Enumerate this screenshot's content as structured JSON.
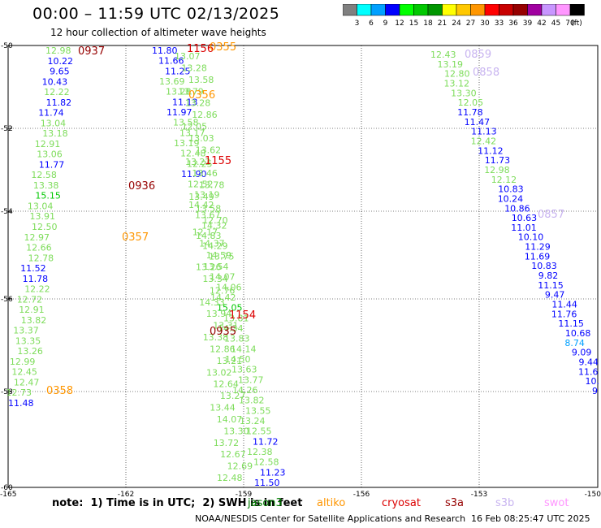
{
  "header": {
    "title": "00:00 – 11:59 UTC 02/13/2025",
    "subtitle": "12 hour collection of altimeter wave heights"
  },
  "colorbar": {
    "unit": "(ft)",
    "stops": [
      {
        "label": "3",
        "color": "#808080"
      },
      {
        "label": "6",
        "color": "#00ffff"
      },
      {
        "label": "9",
        "color": "#00a0ff"
      },
      {
        "label": "12",
        "color": "#0000ff"
      },
      {
        "label": "15",
        "color": "#00ff00"
      },
      {
        "label": "18",
        "color": "#00c800"
      },
      {
        "label": "21",
        "color": "#009600"
      },
      {
        "label": "24",
        "color": "#ffff00"
      },
      {
        "label": "27",
        "color": "#ffc800"
      },
      {
        "label": "30",
        "color": "#ff9600"
      },
      {
        "label": "33",
        "color": "#ff0000"
      },
      {
        "label": "36",
        "color": "#c80000"
      },
      {
        "label": "39",
        "color": "#960000"
      },
      {
        "label": "42",
        "color": "#a000a0"
      },
      {
        "label": "45",
        "color": "#c896ff"
      },
      {
        "label": "70",
        "color": "#ff96ff"
      },
      {
        "label": "",
        "color": "#000000"
      }
    ]
  },
  "map": {
    "lon_ticks": [
      "-165",
      "-162",
      "-159",
      "-156",
      "-153",
      "-150"
    ],
    "lat_ticks": [
      "-50",
      "-52",
      "-54",
      "-56",
      "-58",
      "-60"
    ],
    "colors": {
      "gray": "#808080",
      "blue": "#0000ff",
      "green": "#00c800",
      "lightgreen": "#7ddc5a",
      "darkred": "#960000",
      "red": "#dc0000",
      "orange": "#ff9600",
      "lavender": "#c8b4f0",
      "cyan": "#00a0ff"
    },
    "time_labels": [
      {
        "text": "0937",
        "color": "darkred"
      },
      {
        "text": "1156",
        "color": "red"
      },
      {
        "text": "0355",
        "color": "orange"
      },
      {
        "text": "0356",
        "color": "orange"
      },
      {
        "text": "1155",
        "color": "red"
      },
      {
        "text": "0936",
        "color": "darkred"
      },
      {
        "text": "0357",
        "color": "orange"
      },
      {
        "text": "1154",
        "color": "red"
      },
      {
        "text": "0935",
        "color": "darkred"
      },
      {
        "text": "0358",
        "color": "orange"
      },
      {
        "text": "0859",
        "color": "lavender"
      },
      {
        "text": "0858",
        "color": "lavender"
      },
      {
        "text": "0857",
        "color": "lavender"
      }
    ],
    "tracks": [
      {
        "id": "track-a",
        "labels": [
          {
            "text": "12.98",
            "color": "lightgreen"
          },
          {
            "text": "10.22",
            "color": "blue"
          },
          {
            "text": "9.65",
            "color": "blue"
          },
          {
            "text": "10.43",
            "color": "blue"
          },
          {
            "text": "12.22",
            "color": "lightgreen"
          },
          {
            "text": "11.82",
            "color": "blue"
          },
          {
            "text": "11.74",
            "color": "blue"
          },
          {
            "text": "13.04",
            "color": "lightgreen"
          },
          {
            "text": "13.18",
            "color": "lightgreen"
          },
          {
            "text": "12.91",
            "color": "lightgreen"
          },
          {
            "text": "13.06",
            "color": "lightgreen"
          },
          {
            "text": "11.77",
            "color": "blue"
          },
          {
            "text": "12.58",
            "color": "lightgreen"
          },
          {
            "text": "13.38",
            "color": "lightgreen"
          },
          {
            "text": "15.15",
            "color": "green"
          },
          {
            "text": "13.04",
            "color": "lightgreen"
          },
          {
            "text": "13.91",
            "color": "lightgreen"
          },
          {
            "text": "12.50",
            "color": "lightgreen"
          },
          {
            "text": "12.97",
            "color": "lightgreen"
          },
          {
            "text": "12.66",
            "color": "lightgreen"
          },
          {
            "text": "12.78",
            "color": "lightgreen"
          },
          {
            "text": "11.52",
            "color": "blue"
          },
          {
            "text": "11.78",
            "color": "blue"
          },
          {
            "text": "12.22",
            "color": "lightgreen"
          },
          {
            "text": "12.72",
            "color": "lightgreen"
          },
          {
            "text": "12.91",
            "color": "lightgreen"
          },
          {
            "text": "13.82",
            "color": "lightgreen"
          },
          {
            "text": "13.37",
            "color": "lightgreen"
          },
          {
            "text": "13.35",
            "color": "lightgreen"
          },
          {
            "text": "13.26",
            "color": "lightgreen"
          },
          {
            "text": "12.99",
            "color": "lightgreen"
          },
          {
            "text": "12.45",
            "color": "lightgreen"
          },
          {
            "text": "12.47",
            "color": "lightgreen"
          },
          {
            "text": "12.73",
            "color": "lightgreen"
          },
          {
            "text": "11.48",
            "color": "blue"
          }
        ]
      },
      {
        "id": "track-b",
        "labels": [
          {
            "text": "11.80",
            "color": "blue"
          },
          {
            "text": "11.66",
            "color": "blue"
          },
          {
            "text": "11.25",
            "color": "blue"
          },
          {
            "text": "13.69",
            "color": "lightgreen"
          },
          {
            "text": "13.28",
            "color": "lightgreen"
          },
          {
            "text": "11.13",
            "color": "blue"
          },
          {
            "text": "11.97",
            "color": "blue"
          },
          {
            "text": "13.58",
            "color": "lightgreen"
          },
          {
            "text": "13.17",
            "color": "lightgreen"
          },
          {
            "text": "13.19",
            "color": "lightgreen"
          },
          {
            "text": "12.48",
            "color": "lightgreen"
          },
          {
            "text": "12.25",
            "color": "lightgreen"
          },
          {
            "text": "11.90",
            "color": "blue"
          },
          {
            "text": "12.52",
            "color": "lightgreen"
          },
          {
            "text": "13.19",
            "color": "lightgreen"
          },
          {
            "text": "14.42",
            "color": "lightgreen"
          },
          {
            "text": "13.67",
            "color": "lightgreen"
          },
          {
            "text": "14.32",
            "color": "lightgreen"
          },
          {
            "text": "14.83",
            "color": "lightgreen"
          },
          {
            "text": "14.29",
            "color": "lightgreen"
          },
          {
            "text": "13.75",
            "color": "lightgreen"
          },
          {
            "text": "13.54",
            "color": "lightgreen"
          },
          {
            "text": "14.07",
            "color": "lightgreen"
          },
          {
            "text": "14.06",
            "color": "lightgreen"
          },
          {
            "text": "14.42",
            "color": "lightgreen"
          },
          {
            "text": "15.05",
            "color": "green"
          },
          {
            "text": "13.81",
            "color": "lightgreen"
          },
          {
            "text": "14.34",
            "color": "lightgreen"
          },
          {
            "text": "13.83",
            "color": "lightgreen"
          },
          {
            "text": "14.14",
            "color": "lightgreen"
          },
          {
            "text": "14.50",
            "color": "lightgreen"
          },
          {
            "text": "13.63",
            "color": "lightgreen"
          },
          {
            "text": "13.77",
            "color": "lightgreen"
          },
          {
            "text": "14.26",
            "color": "lightgreen"
          },
          {
            "text": "13.82",
            "color": "lightgreen"
          },
          {
            "text": "13.55",
            "color": "lightgreen"
          },
          {
            "text": "13.24",
            "color": "lightgreen"
          },
          {
            "text": "12.55",
            "color": "lightgreen"
          },
          {
            "text": "11.72",
            "color": "blue"
          },
          {
            "text": "12.38",
            "color": "lightgreen"
          },
          {
            "text": "12.58",
            "color": "lightgreen"
          },
          {
            "text": "11.23",
            "color": "blue"
          },
          {
            "text": "11.50",
            "color": "blue"
          }
        ]
      },
      {
        "id": "track-c",
        "labels": [
          {
            "text": "13.07",
            "color": "lightgreen"
          },
          {
            "text": "13.28",
            "color": "lightgreen"
          },
          {
            "text": "13.58",
            "color": "lightgreen"
          },
          {
            "text": "13.79",
            "color": "lightgreen"
          },
          {
            "text": "13.28",
            "color": "lightgreen"
          },
          {
            "text": "12.86",
            "color": "lightgreen"
          },
          {
            "text": "12.05",
            "color": "lightgreen"
          },
          {
            "text": "13.03",
            "color": "lightgreen"
          },
          {
            "text": "13.62",
            "color": "lightgreen"
          },
          {
            "text": "13.22",
            "color": "lightgreen"
          },
          {
            "text": "13.46",
            "color": "lightgreen"
          },
          {
            "text": "13.78",
            "color": "lightgreen"
          },
          {
            "text": "13.49",
            "color": "lightgreen"
          },
          {
            "text": "13.58",
            "color": "lightgreen"
          },
          {
            "text": "12.70",
            "color": "lightgreen"
          },
          {
            "text": "12.17",
            "color": "lightgreen"
          },
          {
            "text": "14.37",
            "color": "lightgreen"
          },
          {
            "text": "14.59",
            "color": "lightgreen"
          },
          {
            "text": "13.26",
            "color": "lightgreen"
          },
          {
            "text": "13.34",
            "color": "lightgreen"
          },
          {
            "text": "12.76",
            "color": "lightgreen"
          },
          {
            "text": "14.33",
            "color": "lightgreen"
          },
          {
            "text": "13.94",
            "color": "lightgreen"
          },
          {
            "text": "13.31",
            "color": "lightgreen"
          },
          {
            "text": "13.38",
            "color": "lightgreen"
          },
          {
            "text": "12.86",
            "color": "lightgreen"
          },
          {
            "text": "13.21",
            "color": "lightgreen"
          },
          {
            "text": "13.02",
            "color": "lightgreen"
          },
          {
            "text": "12.64",
            "color": "lightgreen"
          },
          {
            "text": "13.27",
            "color": "lightgreen"
          },
          {
            "text": "13.44",
            "color": "lightgreen"
          },
          {
            "text": "14.07",
            "color": "lightgreen"
          },
          {
            "text": "13.30",
            "color": "lightgreen"
          },
          {
            "text": "13.72",
            "color": "lightgreen"
          },
          {
            "text": "12.67",
            "color": "lightgreen"
          },
          {
            "text": "12.69",
            "color": "lightgreen"
          },
          {
            "text": "12.48",
            "color": "lightgreen"
          }
        ]
      },
      {
        "id": "track-d",
        "labels": [
          {
            "text": "12.43",
            "color": "lightgreen"
          },
          {
            "text": "13.19",
            "color": "lightgreen"
          },
          {
            "text": "12.80",
            "color": "lightgreen"
          },
          {
            "text": "13.12",
            "color": "lightgreen"
          },
          {
            "text": "13.30",
            "color": "lightgreen"
          },
          {
            "text": "12.05",
            "color": "lightgreen"
          },
          {
            "text": "11.78",
            "color": "blue"
          },
          {
            "text": "11.47",
            "color": "blue"
          },
          {
            "text": "11.13",
            "color": "blue"
          },
          {
            "text": "12.42",
            "color": "lightgreen"
          },
          {
            "text": "11.12",
            "color": "blue"
          },
          {
            "text": "11.73",
            "color": "blue"
          },
          {
            "text": "12.98",
            "color": "lightgreen"
          },
          {
            "text": "12.12",
            "color": "lightgreen"
          },
          {
            "text": "10.83",
            "color": "blue"
          },
          {
            "text": "10.24",
            "color": "blue"
          },
          {
            "text": "10.86",
            "color": "blue"
          },
          {
            "text": "10.63",
            "color": "blue"
          },
          {
            "text": "11.01",
            "color": "blue"
          },
          {
            "text": "10.10",
            "color": "blue"
          },
          {
            "text": "11.29",
            "color": "blue"
          },
          {
            "text": "11.69",
            "color": "blue"
          },
          {
            "text": "10.83",
            "color": "blue"
          },
          {
            "text": "9.82",
            "color": "blue"
          },
          {
            "text": "11.15",
            "color": "blue"
          },
          {
            "text": "9.47",
            "color": "blue"
          },
          {
            "text": "11.44",
            "color": "blue"
          },
          {
            "text": "11.76",
            "color": "blue"
          },
          {
            "text": "11.15",
            "color": "blue"
          },
          {
            "text": "10.68",
            "color": "blue"
          },
          {
            "text": "8.74",
            "color": "cyan"
          },
          {
            "text": "9.09",
            "color": "blue"
          },
          {
            "text": "9.44",
            "color": "blue"
          },
          {
            "text": "11.6",
            "color": "blue"
          },
          {
            "text": "10.",
            "color": "blue"
          },
          {
            "text": "9",
            "color": "blue"
          }
        ]
      }
    ]
  },
  "footer": {
    "note": "note:  1) Time is in UTC;  2) SWH is in feet",
    "legend": [
      {
        "name": "jason3",
        "color": "#008000"
      },
      {
        "name": "altiko",
        "color": "#ff9600"
      },
      {
        "name": "cryosat",
        "color": "#dc0000"
      },
      {
        "name": "s3a",
        "color": "#960000"
      },
      {
        "name": "s3b",
        "color": "#c8b4f0"
      },
      {
        "name": "swot",
        "color": "#ff96ff"
      }
    ],
    "credit": "NOAA/NESDIS Center for Satellite Applications and Research",
    "created": "16 Feb 08:25:47 UTC 2025"
  }
}
